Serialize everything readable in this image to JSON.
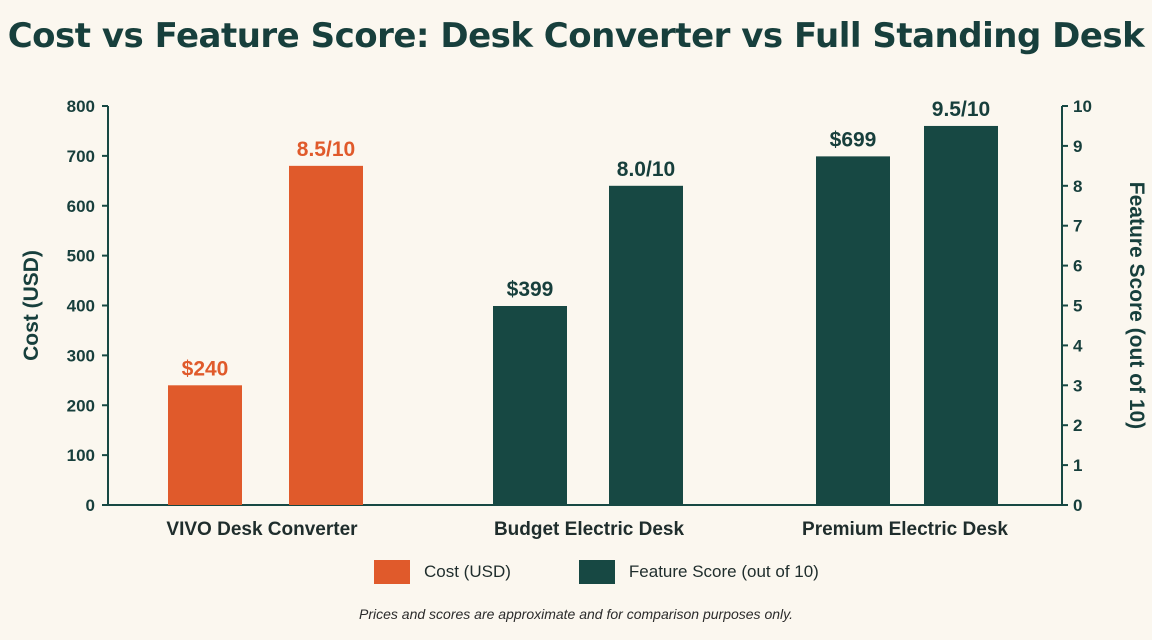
{
  "chart_data": {
    "type": "bar",
    "title": "Cost vs Feature Score: Desk Converter vs Full Standing Desk",
    "categories": [
      "VIVO Desk Converter",
      "Budget Electric Desk",
      "Premium Electric Desk"
    ],
    "series": [
      {
        "name": "Cost (USD)",
        "axis": "left",
        "values": [
          240,
          399,
          699
        ],
        "labels": [
          "$240",
          "$399",
          "$699"
        ],
        "colors": [
          "#e05a2b",
          "#174843",
          "#174843"
        ]
      },
      {
        "name": "Feature Score (out of 10)",
        "axis": "right",
        "values": [
          8.5,
          8.0,
          9.5
        ],
        "labels": [
          "8.5/10",
          "8.0/10",
          "9.5/10"
        ],
        "colors": [
          "#e05a2b",
          "#174843",
          "#174843"
        ]
      }
    ],
    "ylabel": "Cost (USD)",
    "ylim": [
      0,
      800
    ],
    "yticks": [
      0,
      100,
      200,
      300,
      400,
      500,
      600,
      700,
      800
    ],
    "y2label": "Feature Score (out of 10)",
    "y2lim": [
      0,
      10
    ],
    "y2ticks": [
      0,
      1,
      2,
      3,
      4,
      5,
      6,
      7,
      8,
      9,
      10
    ],
    "grid": false,
    "legend_position": "bottom-center"
  },
  "legend": {
    "items": [
      {
        "label": "Cost (USD)",
        "color": "#e05a2b"
      },
      {
        "label": "Feature Score (out of 10)",
        "color": "#174843"
      }
    ]
  },
  "footnote": "Prices and scores are approximate and for comparison purposes only.",
  "colors": {
    "orange": "#e05a2b",
    "teal": "#174843",
    "text": "#173f3c",
    "background": "#fbf7ef"
  }
}
